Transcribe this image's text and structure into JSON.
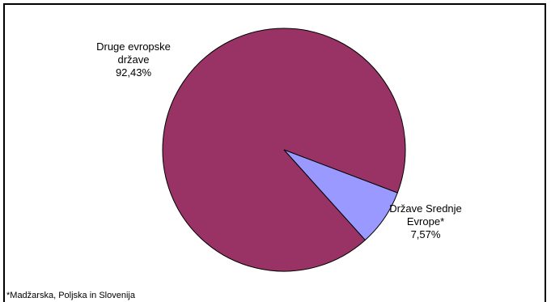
{
  "chart_data": {
    "type": "pie",
    "categories": [
      "Druge evropske države",
      "Države Srednje Evrope*"
    ],
    "values": [
      92.43,
      7.57
    ],
    "value_labels": [
      "92,43%",
      "7,57%"
    ],
    "colors": [
      "#993366",
      "#9999ff"
    ],
    "footnote": "*Madžarska, Poljska in Slovenija"
  }
}
